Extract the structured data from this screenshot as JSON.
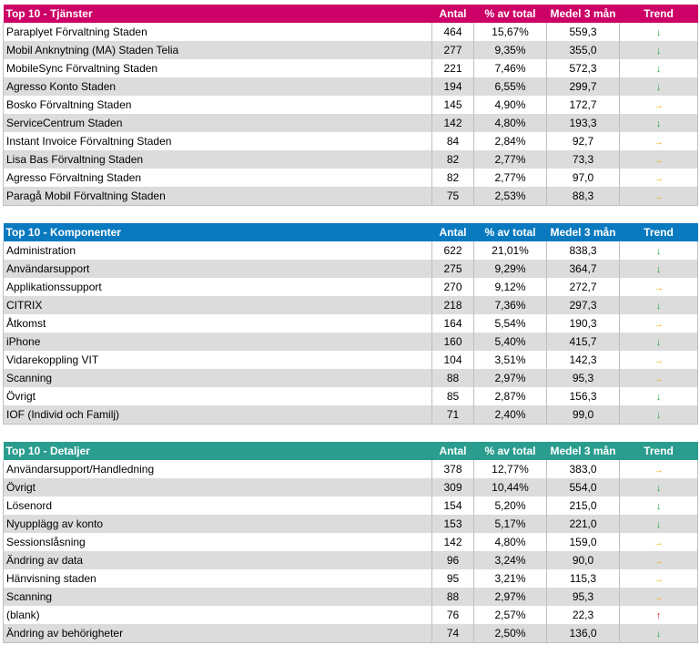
{
  "columns": {
    "antal": "Antal",
    "pct": "% av total",
    "medel": "Medel 3 mån",
    "trend": "Trend"
  },
  "colors": {
    "t1": "#cc0066",
    "t2": "#0a7ac0",
    "t3": "#2a9d8f",
    "down": "#1fa63a",
    "right": "#f7b21b",
    "up": "#e0201b"
  },
  "tables": [
    {
      "title": "Top 10 - Tjänster",
      "rows": [
        {
          "name": "Paraplyet Förvaltning Staden",
          "antal": "464",
          "pct": "15,67%",
          "medel": "559,3",
          "trend": "down"
        },
        {
          "name": "Mobil Anknytning (MA) Staden Telia",
          "antal": "277",
          "pct": "9,35%",
          "medel": "355,0",
          "trend": "down"
        },
        {
          "name": "MobileSync Förvaltning Staden",
          "antal": "221",
          "pct": "7,46%",
          "medel": "572,3",
          "trend": "down"
        },
        {
          "name": "Agresso Konto Staden",
          "antal": "194",
          "pct": "6,55%",
          "medel": "299,7",
          "trend": "down"
        },
        {
          "name": "Bosko Förvaltning Staden",
          "antal": "145",
          "pct": "4,90%",
          "medel": "172,7",
          "trend": "right"
        },
        {
          "name": "ServiceCentrum Staden",
          "antal": "142",
          "pct": "4,80%",
          "medel": "193,3",
          "trend": "down"
        },
        {
          "name": "Instant Invoice Förvaltning Staden",
          "antal": "84",
          "pct": "2,84%",
          "medel": "92,7",
          "trend": "right"
        },
        {
          "name": "Lisa Bas Förvaltning Staden",
          "antal": "82",
          "pct": "2,77%",
          "medel": "73,3",
          "trend": "right"
        },
        {
          "name": "Agresso Förvaltning Staden",
          "antal": "82",
          "pct": "2,77%",
          "medel": "97,0",
          "trend": "right"
        },
        {
          "name": "Paragå Mobil Förvaltning Staden",
          "antal": "75",
          "pct": "2,53%",
          "medel": "88,3",
          "trend": "right"
        }
      ]
    },
    {
      "title": "Top 10 - Komponenter",
      "rows": [
        {
          "name": "Administration",
          "antal": "622",
          "pct": "21,01%",
          "medel": "838,3",
          "trend": "down"
        },
        {
          "name": "Användarsupport",
          "antal": "275",
          "pct": "9,29%",
          "medel": "364,7",
          "trend": "down"
        },
        {
          "name": "Applikationssupport",
          "antal": "270",
          "pct": "9,12%",
          "medel": "272,7",
          "trend": "right"
        },
        {
          "name": "CITRIX",
          "antal": "218",
          "pct": "7,36%",
          "medel": "297,3",
          "trend": "down"
        },
        {
          "name": "Åtkomst",
          "antal": "164",
          "pct": "5,54%",
          "medel": "190,3",
          "trend": "right"
        },
        {
          "name": "iPhone",
          "antal": "160",
          "pct": "5,40%",
          "medel": "415,7",
          "trend": "down"
        },
        {
          "name": "Vidarekoppling VIT",
          "antal": "104",
          "pct": "3,51%",
          "medel": "142,3",
          "trend": "right"
        },
        {
          "name": "Scanning",
          "antal": "88",
          "pct": "2,97%",
          "medel": "95,3",
          "trend": "right"
        },
        {
          "name": "Övrigt",
          "antal": "85",
          "pct": "2,87%",
          "medel": "156,3",
          "trend": "down"
        },
        {
          "name": "IOF (Individ och Familj)",
          "antal": "71",
          "pct": "2,40%",
          "medel": "99,0",
          "trend": "down"
        }
      ]
    },
    {
      "title": "Top 10 - Detaljer",
      "rows": [
        {
          "name": "Användarsupport/Handledning",
          "antal": "378",
          "pct": "12,77%",
          "medel": "383,0",
          "trend": "right"
        },
        {
          "name": "Övrigt",
          "antal": "309",
          "pct": "10,44%",
          "medel": "554,0",
          "trend": "down"
        },
        {
          "name": "Lösenord",
          "antal": "154",
          "pct": "5,20%",
          "medel": "215,0",
          "trend": "down"
        },
        {
          "name": "Nyupplägg av konto",
          "antal": "153",
          "pct": "5,17%",
          "medel": "221,0",
          "trend": "down"
        },
        {
          "name": "Sessionslåsning",
          "antal": "142",
          "pct": "4,80%",
          "medel": "159,0",
          "trend": "right"
        },
        {
          "name": "Ändring av data",
          "antal": "96",
          "pct": "3,24%",
          "medel": "90,0",
          "trend": "right"
        },
        {
          "name": "Hänvisning staden",
          "antal": "95",
          "pct": "3,21%",
          "medel": "115,3",
          "trend": "right"
        },
        {
          "name": "Scanning",
          "antal": "88",
          "pct": "2,97%",
          "medel": "95,3",
          "trend": "right"
        },
        {
          "name": "(blank)",
          "antal": "76",
          "pct": "2,57%",
          "medel": "22,3",
          "trend": "up"
        },
        {
          "name": "Ändring av behörigheter",
          "antal": "74",
          "pct": "2,50%",
          "medel": "136,0",
          "trend": "down"
        }
      ]
    }
  ]
}
